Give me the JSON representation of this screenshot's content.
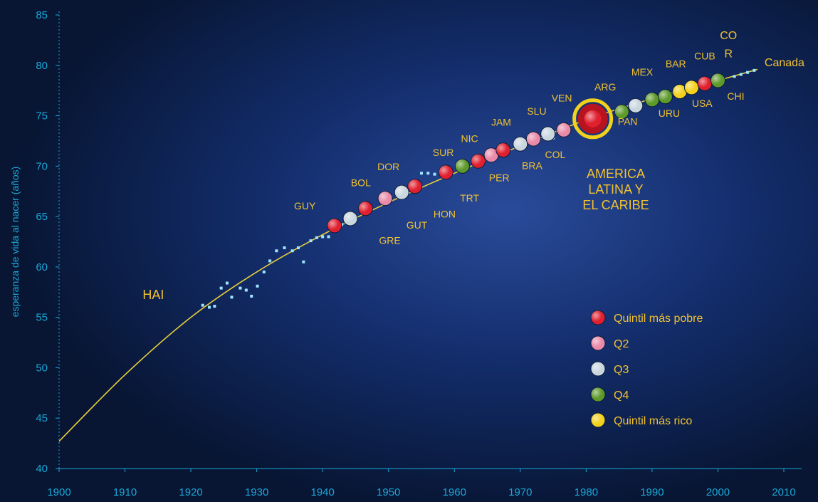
{
  "chart_data": {
    "type": "scatter",
    "ylabel": "esperanza de vida al nacer (años)",
    "xlim": [
      1900,
      2010
    ],
    "ylim": [
      40,
      85
    ],
    "x_ticks": [
      "1900",
      "1910",
      "1920",
      "1930",
      "1940",
      "1950",
      "1960",
      "1970",
      "1980",
      "1990",
      "2000",
      "2010"
    ],
    "y_ticks": [
      "40",
      "45",
      "50",
      "55",
      "60",
      "65",
      "70",
      "75",
      "80",
      "85"
    ],
    "grid": false,
    "curve": [
      [
        1900,
        42.7
      ],
      [
        1910,
        49.3
      ],
      [
        1920,
        55.0
      ],
      [
        1930,
        59.5
      ],
      [
        1940,
        63.2
      ],
      [
        1950,
        66.4
      ],
      [
        1960,
        69.3
      ],
      [
        1970,
        72.0
      ],
      [
        1980,
        74.6
      ],
      [
        1990,
        76.7
      ],
      [
        2000,
        78.5
      ],
      [
        2006,
        79.6
      ]
    ],
    "small_points": [
      [
        1921.8,
        56.2
      ],
      [
        1922.8,
        56.0
      ],
      [
        1923.6,
        56.1
      ],
      [
        1924.6,
        57.9
      ],
      [
        1925.5,
        58.4
      ],
      [
        1926.2,
        57.0
      ],
      [
        1927.5,
        57.9
      ],
      [
        1928.4,
        57.7
      ],
      [
        1929.2,
        57.1
      ],
      [
        1930.1,
        58.1
      ],
      [
        1931.1,
        59.5
      ],
      [
        1932.0,
        60.6
      ],
      [
        1933.0,
        61.6
      ],
      [
        1934.2,
        61.9
      ],
      [
        1935.4,
        61.6
      ],
      [
        1936.3,
        61.9
      ],
      [
        1937.1,
        60.5
      ],
      [
        1938.2,
        62.6
      ],
      [
        1939.1,
        62.9
      ],
      [
        1940.0,
        63.0
      ],
      [
        1940.9,
        63.0
      ],
      [
        1942.2,
        63.6
      ],
      [
        1942.9,
        64.2
      ],
      [
        1955.0,
        69.3
      ],
      [
        1956.0,
        69.3
      ],
      [
        1957.0,
        69.2
      ],
      [
        1958.0,
        69.3
      ],
      [
        1975.0,
        72.8
      ],
      [
        2002.5,
        78.9
      ],
      [
        2003.5,
        79.1
      ],
      [
        2004.5,
        79.3
      ],
      [
        2005.5,
        79.5
      ]
    ],
    "countries": [
      {
        "code": "GUY",
        "x": 1941.8,
        "y": 64.1,
        "q": "q1"
      },
      {
        "code": "BOL",
        "x": 1944.2,
        "y": 64.8,
        "q": "q3"
      },
      {
        "code": "GRE",
        "x": 1946.5,
        "y": 65.8,
        "q": "q1"
      },
      {
        "code": "DOR",
        "x": 1949.5,
        "y": 66.8,
        "q": "q2"
      },
      {
        "code": "GUT",
        "x": 1952.0,
        "y": 67.4,
        "q": "q3"
      },
      {
        "code": "HON",
        "x": 1954.0,
        "y": 68.0,
        "q": "q1"
      },
      {
        "code": "SUR",
        "x": 1958.7,
        "y": 69.4,
        "q": "q1"
      },
      {
        "code": "TRT",
        "x": 1961.2,
        "y": 70.0,
        "q": "q4"
      },
      {
        "code": "NIC",
        "x": 1963.6,
        "y": 70.5,
        "q": "q1"
      },
      {
        "code": "PER",
        "x": 1965.6,
        "y": 71.1,
        "q": "q2"
      },
      {
        "code": "JAM",
        "x": 1967.4,
        "y": 71.6,
        "q": "q1"
      },
      {
        "code": "BRA",
        "x": 1970.0,
        "y": 72.2,
        "q": "q3"
      },
      {
        "code": "SLU",
        "x": 1972.0,
        "y": 72.7,
        "q": "q2"
      },
      {
        "code": "COL",
        "x": 1974.2,
        "y": 73.2,
        "q": "q3"
      },
      {
        "code": "VEN",
        "x": 1976.6,
        "y": 73.6,
        "q": "q2"
      },
      {
        "code": "PAN",
        "x": 1985.4,
        "y": 75.4,
        "q": "q4"
      },
      {
        "code": "ARG",
        "x": 1987.5,
        "y": 76.0,
        "q": "q3"
      },
      {
        "code": "MEX",
        "x": 1990.0,
        "y": 76.6,
        "q": "q4"
      },
      {
        "code": "URU",
        "x": 1992.0,
        "y": 76.9,
        "q": "q4"
      },
      {
        "code": "BAR",
        "x": 1994.2,
        "y": 77.4,
        "q": "q5"
      },
      {
        "code": "USA",
        "x": 1996.0,
        "y": 77.8,
        "q": "q5"
      },
      {
        "code": "CUB",
        "x": 1998.0,
        "y": 78.2,
        "q": "q1"
      },
      {
        "code": "CHI",
        "x": 2000.0,
        "y": 78.5,
        "q": "q4"
      }
    ],
    "labels": [
      {
        "text": "HAI",
        "x": 1914.3,
        "y": 56.8,
        "size": "large"
      },
      {
        "text": "GUY",
        "x": 1937.3,
        "y": 65.7
      },
      {
        "text": "BOL",
        "x": 1945.8,
        "y": 68.0
      },
      {
        "text": "GRE",
        "x": 1950.2,
        "y": 62.3
      },
      {
        "text": "DOR",
        "x": 1950.0,
        "y": 69.6
      },
      {
        "text": "GUT",
        "x": 1954.3,
        "y": 63.8
      },
      {
        "text": "HON",
        "x": 1958.5,
        "y": 64.9
      },
      {
        "text": "SUR",
        "x": 1958.3,
        "y": 71.0
      },
      {
        "text": "TRT",
        "x": 1962.3,
        "y": 66.5
      },
      {
        "text": "NIC",
        "x": 1962.3,
        "y": 72.4
      },
      {
        "text": "PER",
        "x": 1966.8,
        "y": 68.5
      },
      {
        "text": "JAM",
        "x": 1967.1,
        "y": 74.0
      },
      {
        "text": "BRA",
        "x": 1971.8,
        "y": 69.7
      },
      {
        "text": "SLU",
        "x": 1972.5,
        "y": 75.1
      },
      {
        "text": "COL",
        "x": 1975.3,
        "y": 70.8
      },
      {
        "text": "VEN",
        "x": 1976.3,
        "y": 76.4
      },
      {
        "text": "ARG",
        "x": 1982.9,
        "y": 77.5
      },
      {
        "text": "PAN",
        "x": 1986.3,
        "y": 74.1
      },
      {
        "text": "MEX",
        "x": 1988.5,
        "y": 79.0
      },
      {
        "text": "URU",
        "x": 1992.6,
        "y": 74.9
      },
      {
        "text": "BAR",
        "x": 1993.6,
        "y": 79.8
      },
      {
        "text": "USA",
        "x": 1997.6,
        "y": 75.9
      },
      {
        "text": "CUB",
        "x": 1998.0,
        "y": 80.6
      },
      {
        "text": "CHI",
        "x": 2002.7,
        "y": 76.6
      },
      {
        "text": "Canada",
        "x": 2010.1,
        "y": 79.9
      }
    ],
    "cor_label": [
      "CO",
      "R"
    ],
    "cor_point": {
      "x": 2001.6,
      "y": 82.3
    },
    "latin_america": {
      "x": 1981.0,
      "y": 74.7,
      "q": "q1"
    },
    "latin_america_label": [
      "AMERICA",
      "LATINA Y",
      "EL CARIBE"
    ],
    "legend": {
      "placement": "bottom-right",
      "entries": [
        {
          "label": "Quintil más pobre",
          "q": "q1"
        },
        {
          "label": "Q2",
          "q": "q2"
        },
        {
          "label": "Q3",
          "q": "q3"
        },
        {
          "label": "Q4",
          "q": "q4"
        },
        {
          "label": "Quintil más rico",
          "q": "q5"
        }
      ]
    },
    "colors": {
      "q1": "#e0202f",
      "q2": "#e88aa8",
      "q3": "#c9d6de",
      "q4": "#5e9a2a",
      "q5": "#f2d11c",
      "curve": "#e8d03a",
      "axis": "#1aa7d6",
      "label": "#f2c230",
      "small_point": "#9fe6ff"
    }
  }
}
